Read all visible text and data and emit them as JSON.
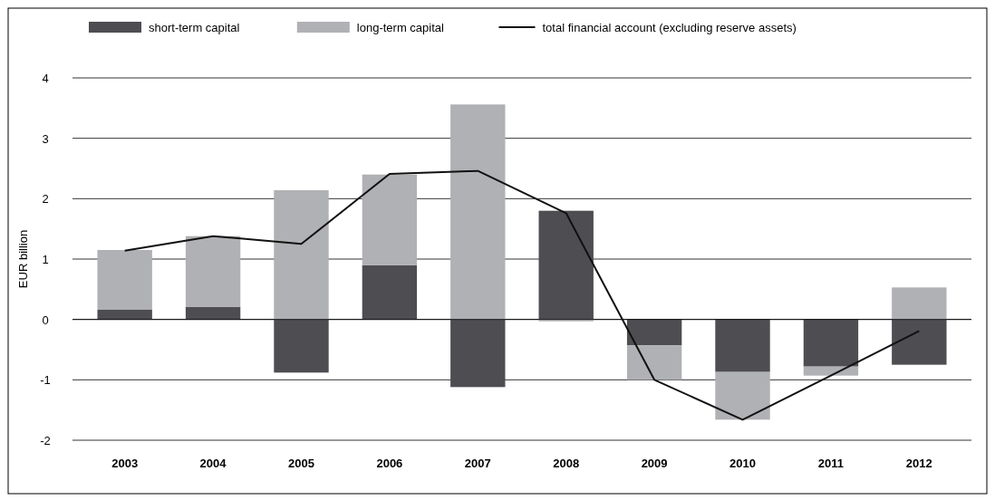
{
  "chart_data": {
    "type": "bar",
    "stacked": true,
    "ylabel": "EUR billion",
    "categories": [
      "2003",
      "2004",
      "2005",
      "2006",
      "2007",
      "2008",
      "2009",
      "2010",
      "2011",
      "2012"
    ],
    "series": [
      {
        "name": "short-term capital",
        "color": "#4d4d52",
        "values": [
          0.16,
          0.21,
          -0.88,
          0.9,
          -1.12,
          1.8,
          -0.43,
          -0.87,
          -0.78,
          -0.75
        ]
      },
      {
        "name": "long-term capital",
        "color": "#b0b1b4",
        "values": [
          0.99,
          1.17,
          2.14,
          1.5,
          3.56,
          -0.03,
          -0.57,
          -0.79,
          -0.15,
          0.53
        ]
      },
      {
        "name": "total financial account (excluding reserve assets)",
        "type": "line",
        "color": "#111111",
        "values": [
          1.14,
          1.38,
          1.25,
          2.41,
          2.46,
          1.76,
          -1.0,
          -1.66,
          -0.93,
          -0.19
        ]
      }
    ],
    "ylim": [
      -2,
      4
    ],
    "yticks": [
      -2,
      -1,
      0,
      1,
      2,
      3,
      4
    ],
    "grid": "y",
    "legend": "top",
    "marker": "none",
    "line_style": "solid"
  }
}
